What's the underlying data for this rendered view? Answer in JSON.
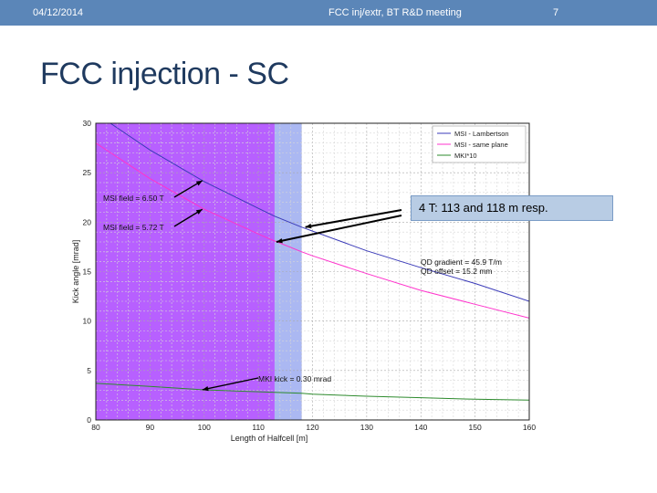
{
  "header": {
    "date": "04/12/2014",
    "meeting": "FCC inj/extr, BT R&D meeting",
    "page_number": "7"
  },
  "slide": {
    "title": "FCC injection - SC",
    "callout": "4 T: 113 and 118 m resp."
  },
  "chart_data": {
    "type": "line",
    "xlabel": "Length of Halfcell [m]",
    "ylabel": "Kick angle [mrad]",
    "xlim": [
      80,
      160
    ],
    "ylim": [
      0,
      30
    ],
    "xticks": [
      80,
      90,
      100,
      110,
      120,
      130,
      140,
      150,
      160
    ],
    "yticks": [
      0,
      5,
      10,
      15,
      20,
      25,
      30
    ],
    "grid": true,
    "legend_position": "top-right",
    "x": [
      80,
      90,
      100,
      110,
      113,
      118,
      120,
      130,
      140,
      150,
      160
    ],
    "series": [
      {
        "name": "MSI - Lambertson",
        "color": "#3b3bb8",
        "values": [
          31.0,
          27.3,
          24.1,
          21.4,
          20.6,
          19.5,
          19.1,
          17.1,
          15.4,
          13.8,
          12.0
        ]
      },
      {
        "name": "MSI - same plane",
        "color": "#ff33cc",
        "values": [
          28.0,
          24.4,
          21.3,
          18.8,
          18.1,
          17.0,
          16.6,
          14.8,
          13.1,
          11.7,
          10.3
        ]
      },
      {
        "name": "MKI*10",
        "color": "#2e8b2e",
        "values": [
          3.7,
          3.4,
          3.05,
          2.85,
          2.8,
          2.7,
          2.6,
          2.4,
          2.25,
          2.1,
          2.0
        ]
      }
    ],
    "shaded_regions": [
      {
        "from": 80,
        "to": 113,
        "color": "#aa44ff"
      },
      {
        "from": 113,
        "to": 118,
        "color": "#8fa0ee"
      }
    ],
    "annotations": [
      {
        "text": "MSI field = 6.50 T",
        "points_to": [
          100,
          24.2
        ]
      },
      {
        "text": "MSI field = 5.72 T",
        "points_to": [
          100,
          21.3
        ]
      },
      {
        "text": "QD gradient = 45.9 T/m"
      },
      {
        "text": "QD offset = 15.2 mm"
      },
      {
        "text": "MKI kick = 0.30 mrad",
        "points_to": [
          100,
          3.05
        ]
      }
    ]
  }
}
